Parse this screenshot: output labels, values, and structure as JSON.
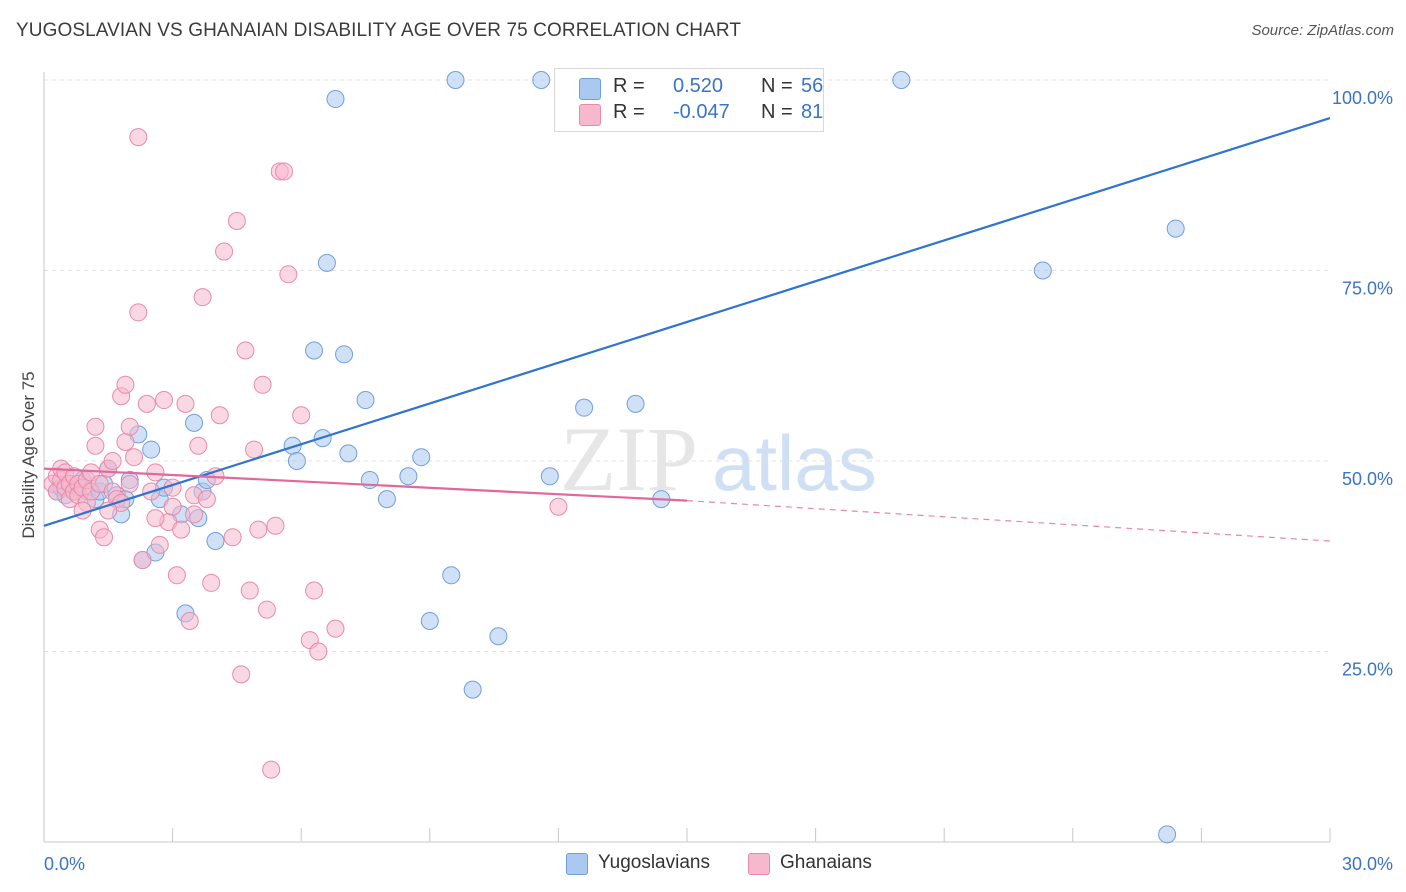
{
  "title": "YUGOSLAVIAN VS GHANAIAN DISABILITY AGE OVER 75 CORRELATION CHART",
  "source": "Source: ZipAtlas.com",
  "legend": {
    "r_label": "R =",
    "n_label": "N =",
    "rows": [
      {
        "r": "0.520",
        "n": "56"
      },
      {
        "r": "-0.047",
        "n": "81"
      }
    ]
  },
  "colors": {
    "yugoslavians_fill": "#aac8f0",
    "yugoslavians_stroke": "#6f9fdc",
    "yugoslavians_line": "#2f74d0",
    "ghanaians_fill": "#f6b8cc",
    "ghanaians_stroke": "#e88aa8",
    "ghanaians_line": "#e0689a",
    "tick_label": "#3a74c4"
  },
  "chart_data": {
    "type": "scatter",
    "title": "YUGOSLAVIAN VS GHANAIAN DISABILITY AGE OVER 75 CORRELATION CHART",
    "xlabel": "",
    "ylabel": "Disability Age Over 75",
    "xlim": [
      0,
      30
    ],
    "ylim": [
      0,
      105
    ],
    "x_tick_labels": [
      "0.0%",
      "30.0%"
    ],
    "y_ticks": [
      25,
      50,
      75,
      100
    ],
    "y_tick_labels": [
      "25.0%",
      "50.0%",
      "75.0%",
      "100.0%"
    ],
    "grid": true,
    "legend_position": "bottom",
    "watermark": "ZIPatlas",
    "series": [
      {
        "name": "Yugoslavians",
        "r": 0.52,
        "n": 56,
        "trend": {
          "x": [
            0,
            30
          ],
          "y": [
            41.5,
            95.0
          ],
          "style": "solid"
        },
        "points": [
          [
            0.3,
            46.0
          ],
          [
            0.4,
            46.5
          ],
          [
            0.5,
            45.5
          ],
          [
            0.6,
            47.0
          ],
          [
            0.8,
            46.5
          ],
          [
            0.9,
            47.5
          ],
          [
            1.0,
            46.0
          ],
          [
            1.2,
            45.0
          ],
          [
            1.3,
            46.0
          ],
          [
            1.4,
            47.0
          ],
          [
            1.5,
            49.0
          ],
          [
            1.7,
            45.5
          ],
          [
            1.8,
            43.0
          ],
          [
            1.9,
            45.0
          ],
          [
            2.0,
            47.5
          ],
          [
            2.2,
            53.5
          ],
          [
            2.3,
            37.0
          ],
          [
            2.5,
            51.5
          ],
          [
            2.6,
            38.0
          ],
          [
            2.7,
            45.0
          ],
          [
            2.8,
            46.5
          ],
          [
            3.2,
            43.0
          ],
          [
            3.3,
            30.0
          ],
          [
            3.5,
            55.0
          ],
          [
            3.6,
            42.5
          ],
          [
            3.7,
            46.0
          ],
          [
            3.8,
            47.5
          ],
          [
            4.0,
            39.5
          ],
          [
            5.8,
            52.0
          ],
          [
            5.9,
            50.0
          ],
          [
            6.3,
            64.5
          ],
          [
            6.5,
            53.0
          ],
          [
            6.6,
            76.0
          ],
          [
            6.8,
            97.5
          ],
          [
            7.0,
            64.0
          ],
          [
            7.1,
            51.0
          ],
          [
            7.5,
            58.0
          ],
          [
            7.6,
            47.5
          ],
          [
            8.0,
            45.0
          ],
          [
            8.5,
            48.0
          ],
          [
            8.8,
            50.5
          ],
          [
            9.0,
            29.0
          ],
          [
            9.5,
            35.0
          ],
          [
            9.6,
            100.0
          ],
          [
            10.0,
            20.0
          ],
          [
            10.6,
            27.0
          ],
          [
            11.6,
            100.0
          ],
          [
            11.8,
            48.0
          ],
          [
            12.6,
            57.0
          ],
          [
            13.0,
            100.0
          ],
          [
            13.8,
            57.5
          ],
          [
            14.4,
            45.0
          ],
          [
            20.0,
            100.0
          ],
          [
            23.3,
            75.0
          ],
          [
            26.4,
            80.5
          ],
          [
            26.2,
            1.0
          ]
        ]
      },
      {
        "name": "Ghanaians",
        "r": -0.047,
        "n": 81,
        "trend": {
          "x": [
            0,
            15
          ],
          "y": [
            49.0,
            44.8
          ],
          "dashed_to": [
            30,
            39.5
          ]
        },
        "points": [
          [
            0.2,
            47.0
          ],
          [
            0.3,
            48.0
          ],
          [
            0.3,
            46.0
          ],
          [
            0.4,
            47.5
          ],
          [
            0.4,
            49.0
          ],
          [
            0.5,
            46.5
          ],
          [
            0.5,
            48.5
          ],
          [
            0.6,
            45.0
          ],
          [
            0.6,
            47.0
          ],
          [
            0.7,
            46.0
          ],
          [
            0.7,
            48.0
          ],
          [
            0.8,
            47.0
          ],
          [
            0.8,
            45.5
          ],
          [
            0.9,
            46.5
          ],
          [
            1.0,
            47.5
          ],
          [
            1.0,
            44.5
          ],
          [
            1.1,
            46.0
          ],
          [
            1.1,
            48.5
          ],
          [
            1.2,
            52.0
          ],
          [
            1.2,
            54.5
          ],
          [
            1.3,
            41.0
          ],
          [
            1.3,
            47.0
          ],
          [
            1.4,
            40.0
          ],
          [
            1.5,
            49.0
          ],
          [
            1.6,
            46.0
          ],
          [
            1.7,
            45.0
          ],
          [
            1.8,
            58.5
          ],
          [
            1.8,
            44.5
          ],
          [
            1.9,
            60.0
          ],
          [
            1.9,
            52.5
          ],
          [
            2.0,
            54.5
          ],
          [
            2.1,
            50.5
          ],
          [
            2.2,
            92.5
          ],
          [
            2.2,
            69.5
          ],
          [
            2.3,
            37.0
          ],
          [
            2.4,
            57.5
          ],
          [
            2.5,
            46.0
          ],
          [
            2.6,
            48.5
          ],
          [
            2.7,
            39.0
          ],
          [
            2.8,
            58.0
          ],
          [
            2.9,
            42.0
          ],
          [
            3.0,
            44.0
          ],
          [
            3.1,
            35.0
          ],
          [
            3.2,
            41.0
          ],
          [
            3.3,
            57.5
          ],
          [
            3.4,
            29.0
          ],
          [
            3.5,
            43.0
          ],
          [
            3.5,
            45.5
          ],
          [
            3.6,
            52.0
          ],
          [
            3.7,
            71.5
          ],
          [
            3.8,
            45.0
          ],
          [
            3.9,
            34.0
          ],
          [
            4.1,
            56.0
          ],
          [
            4.2,
            77.5
          ],
          [
            4.4,
            40.0
          ],
          [
            4.5,
            81.5
          ],
          [
            4.6,
            22.0
          ],
          [
            4.7,
            64.5
          ],
          [
            4.8,
            33.0
          ],
          [
            4.9,
            51.5
          ],
          [
            5.0,
            41.0
          ],
          [
            5.1,
            60.0
          ],
          [
            5.2,
            30.5
          ],
          [
            5.3,
            9.5
          ],
          [
            5.4,
            41.5
          ],
          [
            5.5,
            88.0
          ],
          [
            5.6,
            88.0
          ],
          [
            5.7,
            74.5
          ],
          [
            6.0,
            56.0
          ],
          [
            6.2,
            26.5
          ],
          [
            6.3,
            33.0
          ],
          [
            6.4,
            25.0
          ],
          [
            6.8,
            28.0
          ],
          [
            12.0,
            44.0
          ],
          [
            1.5,
            43.5
          ],
          [
            2.6,
            42.5
          ],
          [
            0.9,
            43.5
          ],
          [
            1.6,
            50.0
          ],
          [
            2.0,
            47.0
          ],
          [
            3.0,
            46.5
          ],
          [
            4.0,
            48.0
          ]
        ]
      }
    ]
  },
  "bottom_legend": [
    "Yugoslavians",
    "Ghanaians"
  ]
}
